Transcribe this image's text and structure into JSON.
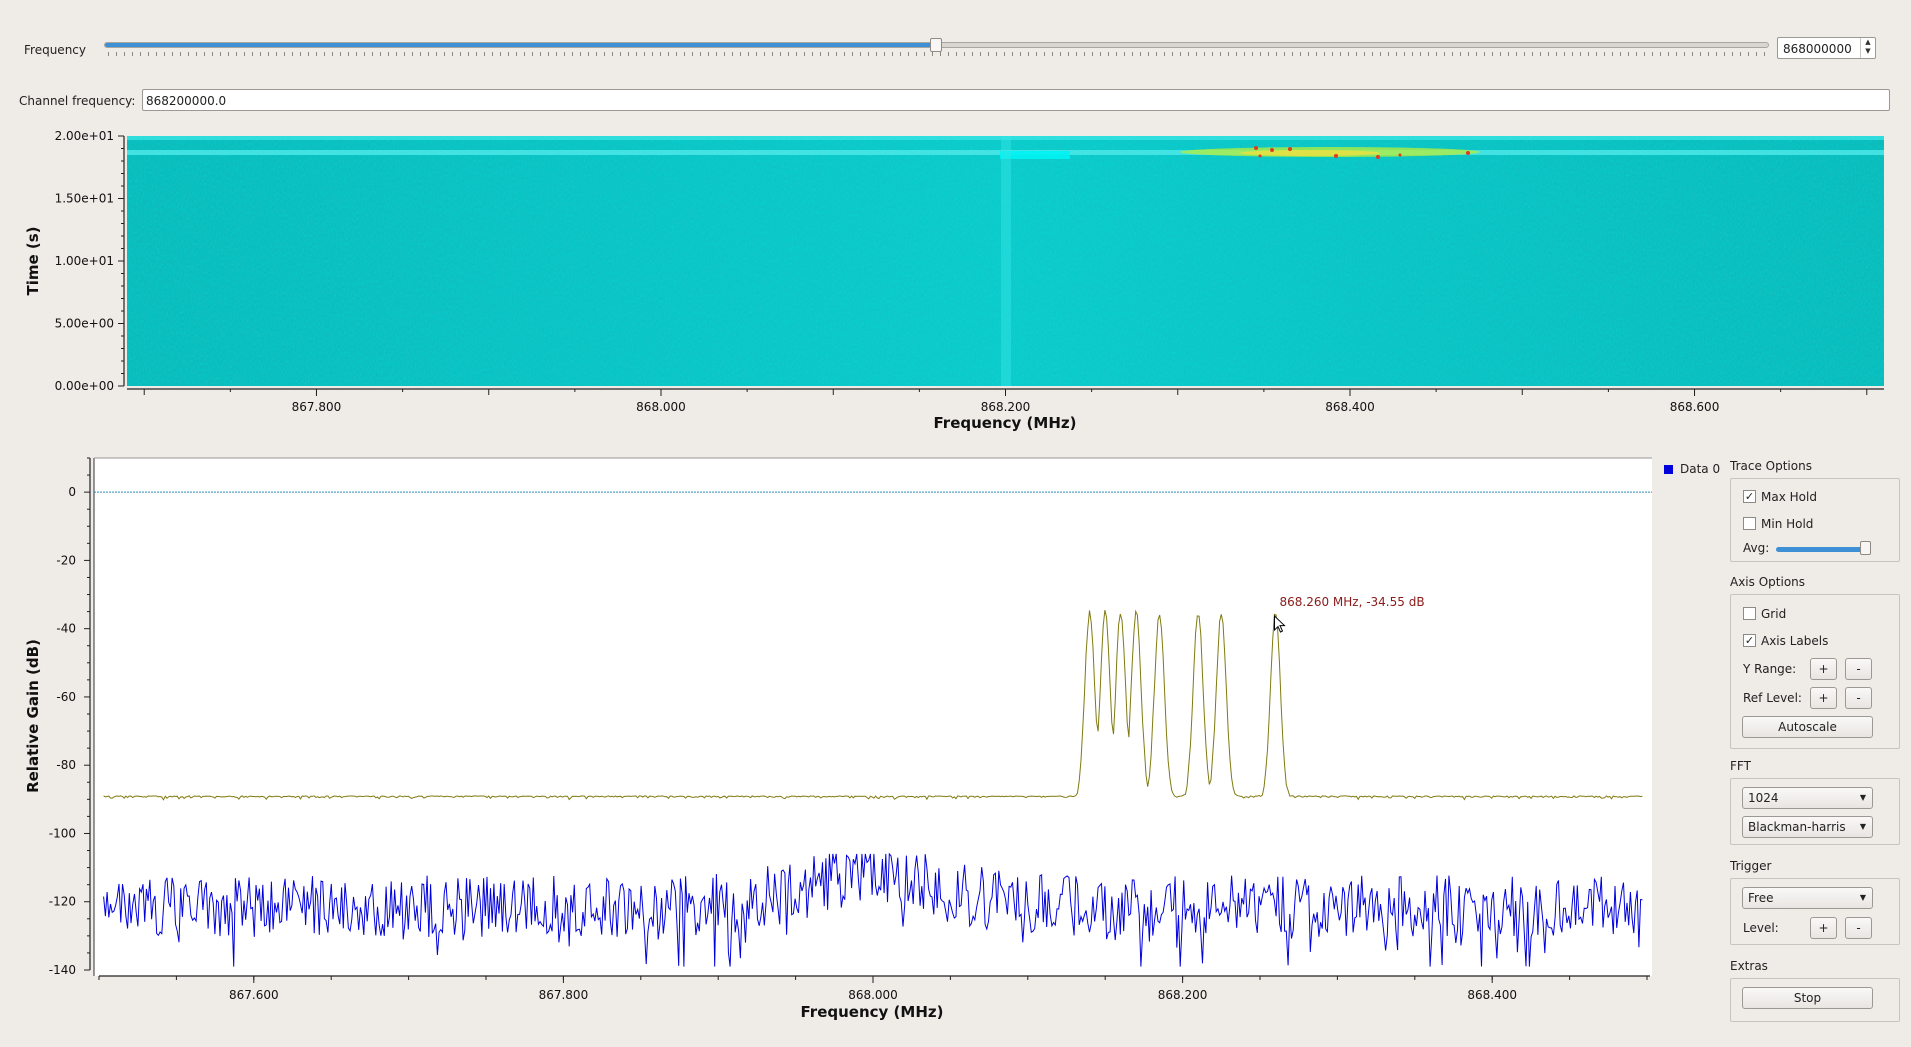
{
  "controls": {
    "frequency_label": "Frequency",
    "frequency_value": "868000000",
    "channel_label": "Channel frequency:",
    "channel_value": "868200000.0"
  },
  "waterfall": {
    "ylabel": "Time (s)",
    "xlabel": "Frequency (MHz)",
    "yticks": [
      "2.00e+01",
      "1.50e+01",
      "1.00e+01",
      "5.00e+00",
      "0.00e+00"
    ],
    "xticks": [
      "867.800",
      "868.000",
      "868.200",
      "868.400",
      "868.600"
    ]
  },
  "chart_data": {
    "type": "line",
    "title": "",
    "xlabel": "Frequency (MHz)",
    "ylabel": "Relative Gain (dB)",
    "xlim": [
      867.5,
      868.5
    ],
    "ylim": [
      -140,
      10
    ],
    "xticks": [
      "867.600",
      "867.800",
      "868.000",
      "868.200",
      "868.400"
    ],
    "yticks": [
      "0",
      "-20",
      "-40",
      "-60",
      "-80",
      "-100",
      "-120",
      "-140"
    ],
    "grid": false,
    "legend": "top-right",
    "series": [
      {
        "name": "Data 0",
        "color": "#0000dd"
      },
      {
        "color": "#807a10"
      }
    ],
    "max_hold_peaks_mhz": [
      868.14,
      868.15,
      868.16,
      868.17,
      868.185,
      868.21,
      868.225,
      868.26
    ],
    "max_hold_peak_db": -35,
    "reference_level_db": 0,
    "marker": {
      "text": "868.260 MHz, -34.55 dB"
    }
  },
  "panel": {
    "trace_options": "Trace Options",
    "max_hold": "Max Hold",
    "min_hold": "Min Hold",
    "avg": "Avg:",
    "axis_options": "Axis Options",
    "grid": "Grid",
    "axis_labels": "Axis Labels",
    "y_range": "Y Range:",
    "ref_level": "Ref Level:",
    "plus": "+",
    "minus": "-",
    "autoscale": "Autoscale",
    "fft": "FFT",
    "fft_size": "1024",
    "window": "Blackman-harris",
    "trigger": "Trigger",
    "trigger_mode": "Free",
    "level": "Level:",
    "extras": "Extras",
    "stop": "Stop"
  },
  "colors": {
    "waterfall_base": "#00c8c8",
    "series_min": "#0000dd",
    "series_max": "#807a10",
    "marker": "#8b1a1a"
  }
}
